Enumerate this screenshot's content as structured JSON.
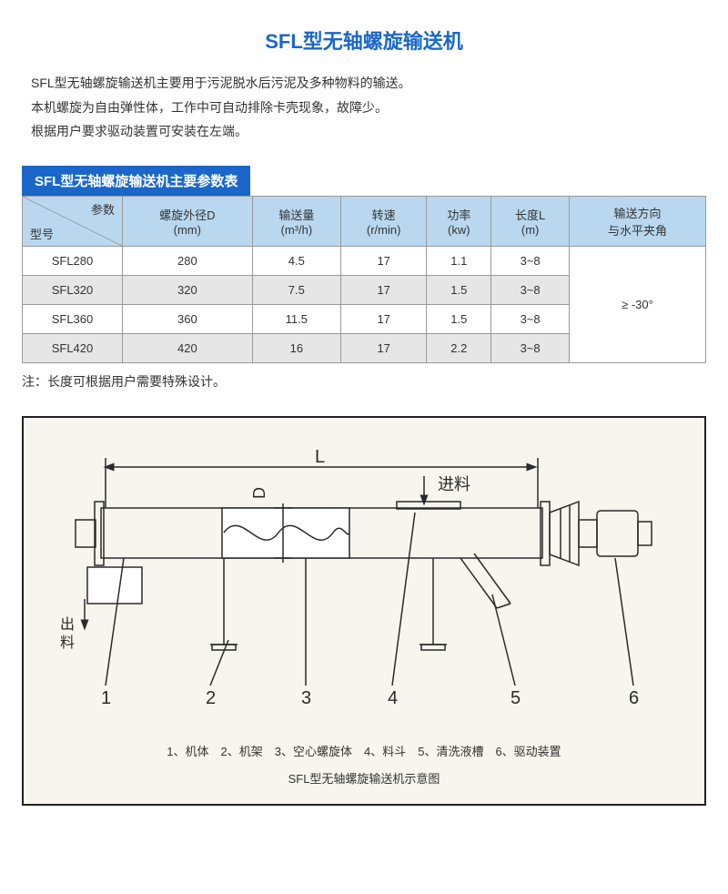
{
  "title": {
    "text": "SFL型无轴螺旋输送机",
    "color": "#1a67c9"
  },
  "description": [
    "SFL型无轴螺旋输送机主要用于污泥脱水后污泥及多种物料的输送。",
    "本机螺旋为自由弹性体，工作中可自动排除卡壳现象，故障少。",
    "根据用户要求驱动装置可安装在左端。"
  ],
  "table": {
    "title": "SFL型无轴螺旋输送机主要参数表",
    "title_bg": "#1a67c9",
    "header_bg": "#b9d8ef",
    "alt_row_bg": "#e6e6e6",
    "border_color": "#888888",
    "columns_top": [
      "参数",
      "螺旋外径D",
      "输送量",
      "转速",
      "功率",
      "长度L",
      "输送方向"
    ],
    "columns_sub": [
      "型号",
      "(mm)",
      "(m³/h)",
      "(r/min)",
      "(kw)",
      "(m)",
      "与水平夹角"
    ],
    "rows": [
      [
        "SFL280",
        "280",
        "4.5",
        "17",
        "1.1",
        "3~8"
      ],
      [
        "SFL320",
        "320",
        "7.5",
        "17",
        "1.5",
        "3~8"
      ],
      [
        "SFL360",
        "360",
        "11.5",
        "17",
        "1.5",
        "3~8"
      ],
      [
        "SFL420",
        "420",
        "16",
        "17",
        "2.2",
        "3~8"
      ]
    ],
    "merged_last": "≥ -30°"
  },
  "note": "注：长度可根据用户需要特殊设计。",
  "diagram": {
    "bg": "#f7f5ed",
    "stroke": "#2a2a2a",
    "labels": {
      "L": "L",
      "D": "D",
      "feed": "进料",
      "discharge": "出料",
      "parts": [
        "1",
        "2",
        "3",
        "4",
        "5",
        "6"
      ]
    },
    "legend": "1、机体　2、机架　3、空心螺旋体　4、料斗　5、清洗液槽　6、驱动装置",
    "caption": "SFL型无轴螺旋输送机示意图"
  }
}
